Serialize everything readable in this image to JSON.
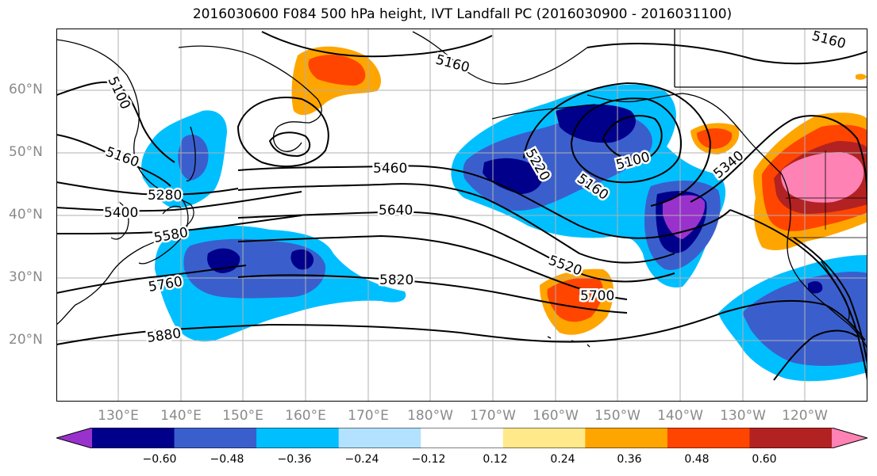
{
  "title": "2016030600 F084 500 hPa height, IVT Landfall PC (2016030900 - 2016031100)",
  "lat_labels": [
    "60°N",
    "50°N",
    "40°N",
    "30°N",
    "20°N"
  ],
  "lon_labels": [
    "130°E",
    "140°E",
    "150°E",
    "160°E",
    "170°E",
    "180°W",
    "170°W",
    "160°W",
    "150°W",
    "140°W",
    "130°W",
    "120°W"
  ],
  "contour_labels": [
    "5100",
    "5160",
    "5160",
    "5160",
    "5280",
    "5400",
    "5580",
    "5760",
    "5880",
    "5460",
    "5640",
    "5820",
    "5220",
    "5160",
    "5100",
    "5340",
    "5520",
    "5700"
  ],
  "colorbar": {
    "ticks": [
      "−0.60",
      "−0.48",
      "−0.36",
      "−0.24",
      "−0.12",
      "0.12",
      "0.24",
      "0.36",
      "0.48",
      "0.60"
    ],
    "colors": [
      "#9932cc",
      "#00008b",
      "#3a5fcd",
      "#00bfff",
      "#b2e2ff",
      "#ffffff",
      "#ffe98a",
      "#ffa500",
      "#ff4500",
      "#b22222",
      "#ff82b4"
    ]
  },
  "colors": {
    "contour": "#000000",
    "coast": "#000000",
    "grid": "#b0b0b0",
    "axis_label": "#8a8a8a"
  }
}
